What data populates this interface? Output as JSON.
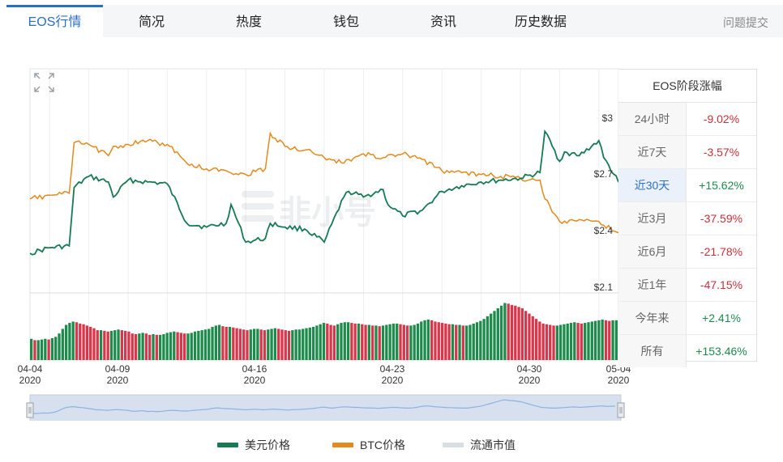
{
  "tabs": [
    {
      "label": "EOS行情",
      "active": true
    },
    {
      "label": "简况",
      "active": false
    },
    {
      "label": "热度",
      "active": false
    },
    {
      "label": "钱包",
      "active": false
    },
    {
      "label": "资讯",
      "active": false
    },
    {
      "label": "历史数据",
      "active": false
    }
  ],
  "report_link": "问题提交",
  "watermark": "非小号",
  "colors": {
    "usd": "#167a52",
    "btc": "#e38a1f",
    "marketcap": "#d9dde4",
    "up": "#1d8b4c",
    "down": "#c9303a",
    "accent": "#2b6fc4"
  },
  "y_axis_labels": [
    "$3",
    "$2.7",
    "$2.4",
    "$2.1"
  ],
  "x_axis_ticks": [
    {
      "md": "04-04",
      "year": "2020"
    },
    {
      "md": "04-09",
      "year": "2020"
    },
    {
      "md": "04-16",
      "year": "2020"
    },
    {
      "md": "04-23",
      "year": "2020"
    },
    {
      "md": "04-30",
      "year": "2020"
    },
    {
      "md": "05-04",
      "year": "2020"
    }
  ],
  "change_table": {
    "title": "EOS阶段涨幅",
    "rows": [
      {
        "label": "24小时",
        "value": "-9.02%",
        "dir": "down",
        "active": false
      },
      {
        "label": "近7天",
        "value": "-3.57%",
        "dir": "down",
        "active": false
      },
      {
        "label": "近30天",
        "value": "+15.62%",
        "dir": "up",
        "active": true
      },
      {
        "label": "近3月",
        "value": "-37.59%",
        "dir": "down",
        "active": false
      },
      {
        "label": "近6月",
        "value": "-21.78%",
        "dir": "down",
        "active": false
      },
      {
        "label": "近1年",
        "value": "-47.15%",
        "dir": "down",
        "active": false
      },
      {
        "label": "今年来",
        "value": "+2.41%",
        "dir": "up",
        "active": false
      },
      {
        "label": "所有",
        "value": "+153.46%",
        "dir": "up",
        "active": false
      }
    ]
  },
  "legend": [
    {
      "label": "美元价格",
      "color": "#167a52"
    },
    {
      "label": "BTC价格",
      "color": "#e38a1f"
    },
    {
      "label": "流通市值",
      "color": "#d9dde4"
    }
  ],
  "chart_data": {
    "type": "line",
    "ylim": [
      2.1,
      3.0
    ],
    "y_ticks": [
      2.1,
      2.4,
      2.7,
      3.0
    ],
    "x_range": [
      "2020-04-04",
      "2020-05-04"
    ],
    "grid": true,
    "legend_position": "bottom",
    "series": [
      {
        "name": "美元价格",
        "color": "#167a52",
        "points": [
          [
            "2020-04-04",
            2.28
          ],
          [
            "2020-04-05",
            2.31
          ],
          [
            "2020-04-06",
            2.32
          ],
          [
            "2020-04-06",
            2.63
          ],
          [
            "2020-04-07",
            2.69
          ],
          [
            "2020-04-08",
            2.66
          ],
          [
            "2020-04-08",
            2.58
          ],
          [
            "2020-04-09",
            2.67
          ],
          [
            "2020-04-10",
            2.66
          ],
          [
            "2020-04-11",
            2.65
          ],
          [
            "2020-04-12",
            2.44
          ],
          [
            "2020-04-13",
            2.42
          ],
          [
            "2020-04-14",
            2.44
          ],
          [
            "2020-04-14",
            2.54
          ],
          [
            "2020-04-15",
            2.34
          ],
          [
            "2020-04-16",
            2.36
          ],
          [
            "2020-04-16",
            2.44
          ],
          [
            "2020-04-17",
            2.42
          ],
          [
            "2020-04-18",
            2.41
          ],
          [
            "2020-04-19",
            2.34
          ],
          [
            "2020-04-20",
            2.58
          ],
          [
            "2020-04-20",
            2.61
          ],
          [
            "2020-04-21",
            2.58
          ],
          [
            "2020-04-22",
            2.62
          ],
          [
            "2020-04-22",
            2.54
          ],
          [
            "2020-04-23",
            2.48
          ],
          [
            "2020-04-24",
            2.51
          ],
          [
            "2020-04-25",
            2.61
          ],
          [
            "2020-04-26",
            2.64
          ],
          [
            "2020-04-27",
            2.66
          ],
          [
            "2020-04-28",
            2.67
          ],
          [
            "2020-04-29",
            2.68
          ],
          [
            "2020-04-30",
            2.71
          ],
          [
            "2020-04-30",
            2.93
          ],
          [
            "2020-05-01",
            2.77
          ],
          [
            "2020-05-01",
            2.82
          ],
          [
            "2020-05-02",
            2.8
          ],
          [
            "2020-05-03",
            2.88
          ],
          [
            "2020-05-03",
            2.79
          ],
          [
            "2020-05-04",
            2.66
          ]
        ]
      },
      {
        "name": "BTC价格",
        "color": "#e38a1f",
        "points": [
          [
            "2020-04-04",
            2.57
          ],
          [
            "2020-04-05",
            2.59
          ],
          [
            "2020-04-06",
            2.6
          ],
          [
            "2020-04-06",
            2.87
          ],
          [
            "2020-04-07",
            2.86
          ],
          [
            "2020-04-08",
            2.8
          ],
          [
            "2020-04-08",
            2.85
          ],
          [
            "2020-04-09",
            2.86
          ],
          [
            "2020-04-10",
            2.88
          ],
          [
            "2020-04-11",
            2.86
          ],
          [
            "2020-04-12",
            2.76
          ],
          [
            "2020-04-13",
            2.73
          ],
          [
            "2020-04-14",
            2.72
          ],
          [
            "2020-04-15",
            2.7
          ],
          [
            "2020-04-16",
            2.73
          ],
          [
            "2020-04-16",
            2.92
          ],
          [
            "2020-04-17",
            2.85
          ],
          [
            "2020-04-18",
            2.83
          ],
          [
            "2020-04-19",
            2.79
          ],
          [
            "2020-04-20",
            2.76
          ],
          [
            "2020-04-21",
            2.81
          ],
          [
            "2020-04-22",
            2.79
          ],
          [
            "2020-04-23",
            2.81
          ],
          [
            "2020-04-24",
            2.78
          ],
          [
            "2020-04-25",
            2.72
          ],
          [
            "2020-04-26",
            2.71
          ],
          [
            "2020-04-27",
            2.7
          ],
          [
            "2020-04-28",
            2.69
          ],
          [
            "2020-04-29",
            2.68
          ],
          [
            "2020-04-30",
            2.67
          ],
          [
            "2020-04-30",
            2.57
          ],
          [
            "2020-05-01",
            2.45
          ],
          [
            "2020-05-02",
            2.46
          ],
          [
            "2020-05-03",
            2.45
          ],
          [
            "2020-05-03",
            2.43
          ],
          [
            "2020-05-04",
            2.39
          ]
        ]
      },
      {
        "name": "流通市值",
        "color": "#d9dde4",
        "values": [
          0.32,
          0.3,
          0.3,
          0.31,
          0.32,
          0.31,
          0.33,
          0.35,
          0.4,
          0.47,
          0.53,
          0.56,
          0.58,
          0.57,
          0.55,
          0.54,
          0.52,
          0.5,
          0.48,
          0.45,
          0.45,
          0.44,
          0.43,
          0.44,
          0.45,
          0.46,
          0.45,
          0.44,
          0.43,
          0.4,
          0.39,
          0.4,
          0.41,
          0.4,
          0.38,
          0.39,
          0.38,
          0.38,
          0.39,
          0.41,
          0.42,
          0.43,
          0.42,
          0.41,
          0.4,
          0.4,
          0.41,
          0.43,
          0.44,
          0.45,
          0.46,
          0.47,
          0.5,
          0.52,
          0.53,
          0.51,
          0.5,
          0.5,
          0.49,
          0.48,
          0.47,
          0.46,
          0.45,
          0.46,
          0.47,
          0.47,
          0.46,
          0.45,
          0.46,
          0.47,
          0.48,
          0.47,
          0.46,
          0.45,
          0.44,
          0.45,
          0.46,
          0.46,
          0.47,
          0.48,
          0.49,
          0.5,
          0.52,
          0.54,
          0.56,
          0.55,
          0.53,
          0.52,
          0.54,
          0.56,
          0.57,
          0.57,
          0.56,
          0.55,
          0.55,
          0.54,
          0.53,
          0.53,
          0.52,
          0.52,
          0.51,
          0.52,
          0.53,
          0.54,
          0.55,
          0.55,
          0.54,
          0.53,
          0.52,
          0.52,
          0.53,
          0.55,
          0.58,
          0.6,
          0.61,
          0.6,
          0.58,
          0.57,
          0.56,
          0.55,
          0.54,
          0.54,
          0.53,
          0.53,
          0.52,
          0.52,
          0.53,
          0.55,
          0.57,
          0.59,
          0.62,
          0.66,
          0.7,
          0.74,
          0.78,
          0.82,
          0.86,
          0.85,
          0.83,
          0.82,
          0.8,
          0.78,
          0.74,
          0.7,
          0.66,
          0.62,
          0.58,
          0.55,
          0.54,
          0.53,
          0.52,
          0.52,
          0.53,
          0.54,
          0.55,
          0.56,
          0.57,
          0.56,
          0.55,
          0.56,
          0.57,
          0.58,
          0.59,
          0.6,
          0.61,
          0.6,
          0.59,
          0.6,
          0.6
        ]
      }
    ]
  }
}
